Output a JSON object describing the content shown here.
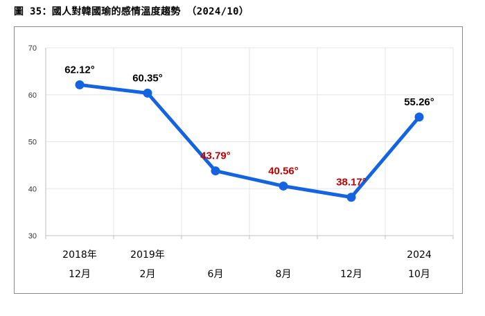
{
  "figure_title": "圖 35：國人對韓國瑜的感情溫度趨勢 （2024/10）",
  "colors": {
    "line": "#1464e1",
    "marker": "#1464e1",
    "label_default": "#000000",
    "label_highlight": "#c00000",
    "grid": "#e6e6e6",
    "axis": "#bfbfbf"
  },
  "chart_data": {
    "type": "line",
    "title": "",
    "xlabel": "",
    "ylabel": "",
    "ylim": [
      30,
      70
    ],
    "yticks": [
      30,
      40,
      50,
      60,
      70
    ],
    "grid": true,
    "legend": "none",
    "categories": [
      {
        "line1": "2018年",
        "line2": "12月"
      },
      {
        "line1": "2019年",
        "line2": "2月"
      },
      {
        "line1": "",
        "line2": "6月"
      },
      {
        "line1": "",
        "line2": "8月"
      },
      {
        "line1": "",
        "line2": "12月"
      },
      {
        "line1": "2024",
        "line2": "10月"
      }
    ],
    "series": [
      {
        "values": [
          62.12,
          60.35,
          43.79,
          40.56,
          38.17,
          55.26
        ],
        "labels": [
          "62.12°",
          "60.35°",
          "43.79°",
          "40.56°",
          "38.17°",
          "55.26°"
        ],
        "label_highlight": [
          false,
          false,
          true,
          true,
          true,
          false
        ]
      }
    ]
  }
}
